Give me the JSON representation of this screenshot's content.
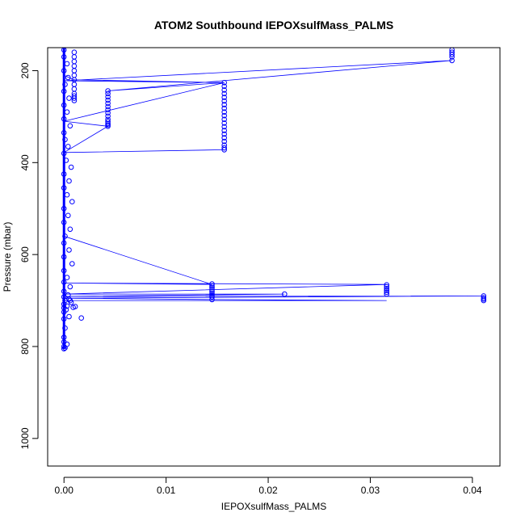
{
  "chart_data": {
    "type": "scatter",
    "title": "ATOM2 Southbound IEPOXsulfMass_PALMS",
    "xlabel": "IEPOXsulfMass_PALMS",
    "ylabel": "Pressure (mbar)",
    "xlim": [
      -0.0016,
      0.0427
    ],
    "ylim": [
      1060,
      150
    ],
    "y_reversed": true,
    "grid": false,
    "legend": "none",
    "x_ticks": [
      0.0,
      0.01,
      0.02,
      0.03,
      0.04
    ],
    "x_tick_labels": [
      "0.00",
      "0.01",
      "0.02",
      "0.03",
      "0.04"
    ],
    "y_ticks": [
      200,
      400,
      600,
      800,
      1000
    ],
    "y_tick_labels": [
      "200",
      "400",
      "600",
      "800",
      "1000"
    ],
    "color": "#0000ff",
    "series": [
      {
        "x": [
          0.0,
          0.0,
          0.0003,
          0.0,
          0.0004,
          0.0001,
          0.0,
          0.0005,
          0.0,
          0.0003,
          0.0,
          0.0006,
          0.0,
          0.0001,
          0.0004,
          0.0,
          0.0002,
          0.0007,
          0.0,
          0.0005,
          0.0,
          0.0003,
          0.0008,
          0.0,
          0.0004,
          0.0,
          0.0006,
          0.0001,
          0.0,
          0.0005,
          0.0,
          0.0008,
          0.0,
          0.0003,
          0.0,
          0.0006,
          0.0,
          0.0004,
          0.0,
          0.0005,
          0.0001,
          0.0007,
          0.0,
          0.0003,
          0.0,
          0.0002,
          0.0,
          0.0,
          0.0001,
          0.0,
          0.0003,
          0.0006,
          0.0009,
          0.0005,
          0.0017,
          0.0011,
          0.0,
          0.0,
          0.0001,
          0.0
        ],
        "y": [
          155,
          170,
          185,
          200,
          215,
          230,
          245,
          260,
          275,
          290,
          305,
          320,
          335,
          350,
          365,
          380,
          395,
          410,
          425,
          440,
          455,
          470,
          485,
          500,
          515,
          530,
          545,
          560,
          575,
          590,
          605,
          620,
          635,
          650,
          660,
          670,
          680,
          688,
          692,
          697,
          700,
          704,
          708,
          712,
          716,
          720,
          725,
          740,
          760,
          780,
          795,
          700,
          715,
          735,
          738,
          713,
          790,
          800,
          803,
          805
        ]
      },
      {
        "x": [
          0.001,
          0.001,
          0.001,
          0.001,
          0.001,
          0.001,
          0.001,
          0.001,
          0.001,
          0.001,
          0.001,
          0.001,
          0.001
        ],
        "y": [
          160,
          170,
          180,
          190,
          200,
          210,
          220,
          230,
          240,
          250,
          255,
          260,
          265
        ]
      },
      {
        "x": [
          0.0043,
          0.0043,
          0.0043,
          0.0043,
          0.0043,
          0.0043,
          0.0043,
          0.0043,
          0.0043,
          0.0043,
          0.0043,
          0.0043,
          0.0043,
          0.0043
        ],
        "y": [
          244,
          250,
          257,
          264,
          271,
          278,
          285,
          292,
          299,
          306,
          311,
          315,
          318,
          321
        ]
      },
      {
        "x": [
          0.0157,
          0.0157,
          0.0157,
          0.0157,
          0.0157,
          0.0157,
          0.0157,
          0.0157,
          0.0157,
          0.0157,
          0.0157,
          0.0157,
          0.0157,
          0.0157,
          0.0157,
          0.0157,
          0.0157,
          0.0157,
          0.0157,
          0.0157
        ],
        "y": [
          226,
          234,
          242,
          250,
          258,
          266,
          274,
          282,
          290,
          298,
          306,
          314,
          322,
          330,
          338,
          346,
          354,
          362,
          368,
          372
        ]
      },
      {
        "x": [
          0.038,
          0.038,
          0.038,
          0.038,
          0.038
        ],
        "y": [
          155,
          160,
          165,
          170,
          178
        ]
      },
      {
        "x": [
          0.0145,
          0.0145,
          0.0145,
          0.0145,
          0.0145,
          0.0145,
          0.0145,
          0.0145,
          0.0145
        ],
        "y": [
          664,
          668,
          672,
          676,
          680,
          684,
          688,
          692,
          698
        ]
      },
      {
        "x": [
          0.0216
        ],
        "y": [
          686
        ]
      },
      {
        "x": [
          0.0316,
          0.0316,
          0.0316,
          0.0316,
          0.0316,
          0.0316
        ],
        "y": [
          666,
          670,
          674,
          678,
          682,
          686
        ]
      },
      {
        "x": [
          0.0411,
          0.0411,
          0.0411,
          0.0411
        ],
        "y": [
          690,
          694,
          697,
          700
        ]
      }
    ],
    "connecting_line": {
      "x": [
        0.0,
        0.0,
        0.001,
        0.0157,
        0.0,
        0.038,
        0.0043,
        0.0157,
        0.0,
        0.0043,
        0.0,
        0.0157,
        0.0,
        0.0,
        0.0145,
        0.0,
        0.0316,
        0.0,
        0.0216,
        0.0,
        0.0411,
        0.0,
        0.0145,
        0.0316,
        0.0
      ],
      "y": [
        150,
        210,
        220,
        226,
        222,
        178,
        244,
        226,
        310,
        321,
        378,
        372,
        378,
        560,
        665,
        662,
        665,
        686,
        686,
        691,
        690,
        695,
        698,
        700,
        700
      ]
    }
  }
}
